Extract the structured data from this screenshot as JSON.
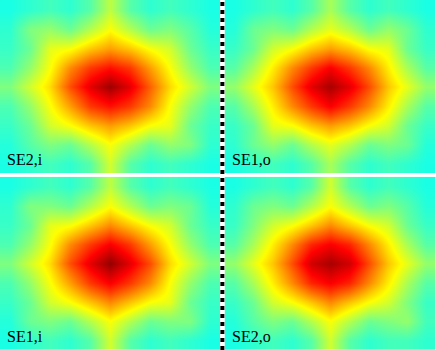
{
  "chart_data": [
    {
      "type": "heatmap",
      "title": "SE2,i",
      "tick_labels": false,
      "zlim": [
        0,
        1
      ],
      "z": [
        [
          0.4,
          0.42,
          0.44,
          0.42,
          0.46,
          0.56,
          0.46,
          0.42,
          0.44,
          0.42,
          0.4
        ],
        [
          0.42,
          0.5,
          0.52,
          0.48,
          0.55,
          0.62,
          0.55,
          0.48,
          0.5,
          0.46,
          0.41
        ],
        [
          0.43,
          0.48,
          0.6,
          0.62,
          0.68,
          0.72,
          0.68,
          0.62,
          0.58,
          0.48,
          0.43
        ],
        [
          0.45,
          0.52,
          0.62,
          0.74,
          0.82,
          0.86,
          0.82,
          0.72,
          0.62,
          0.52,
          0.45
        ],
        [
          0.5,
          0.58,
          0.66,
          0.8,
          0.9,
          0.97,
          0.9,
          0.78,
          0.66,
          0.58,
          0.5
        ],
        [
          0.45,
          0.52,
          0.62,
          0.72,
          0.82,
          0.86,
          0.82,
          0.74,
          0.62,
          0.52,
          0.45
        ],
        [
          0.43,
          0.48,
          0.58,
          0.62,
          0.68,
          0.72,
          0.68,
          0.62,
          0.6,
          0.48,
          0.43
        ],
        [
          0.41,
          0.46,
          0.5,
          0.48,
          0.55,
          0.62,
          0.55,
          0.48,
          0.52,
          0.5,
          0.42
        ],
        [
          0.4,
          0.42,
          0.44,
          0.42,
          0.46,
          0.58,
          0.46,
          0.42,
          0.44,
          0.42,
          0.4
        ]
      ]
    },
    {
      "type": "heatmap",
      "title": "SE1,o",
      "tick_labels": false,
      "zlim": [
        0,
        1
      ],
      "z": [
        [
          0.4,
          0.42,
          0.44,
          0.42,
          0.46,
          0.54,
          0.46,
          0.42,
          0.44,
          0.42,
          0.4
        ],
        [
          0.41,
          0.48,
          0.5,
          0.48,
          0.55,
          0.6,
          0.55,
          0.48,
          0.52,
          0.48,
          0.42
        ],
        [
          0.43,
          0.48,
          0.58,
          0.62,
          0.68,
          0.72,
          0.68,
          0.62,
          0.6,
          0.48,
          0.43
        ],
        [
          0.46,
          0.54,
          0.64,
          0.74,
          0.82,
          0.88,
          0.82,
          0.74,
          0.64,
          0.54,
          0.46
        ],
        [
          0.52,
          0.6,
          0.68,
          0.8,
          0.9,
          0.96,
          0.9,
          0.8,
          0.68,
          0.6,
          0.52
        ],
        [
          0.46,
          0.54,
          0.64,
          0.74,
          0.82,
          0.88,
          0.82,
          0.74,
          0.64,
          0.54,
          0.46
        ],
        [
          0.43,
          0.48,
          0.6,
          0.62,
          0.68,
          0.72,
          0.68,
          0.62,
          0.58,
          0.48,
          0.43
        ],
        [
          0.42,
          0.48,
          0.52,
          0.48,
          0.55,
          0.6,
          0.55,
          0.48,
          0.5,
          0.48,
          0.41
        ],
        [
          0.4,
          0.42,
          0.44,
          0.42,
          0.46,
          0.54,
          0.46,
          0.42,
          0.44,
          0.42,
          0.4
        ]
      ]
    },
    {
      "type": "heatmap",
      "title": "SE1,i",
      "tick_labels": false,
      "zlim": [
        0,
        1
      ],
      "z": [
        [
          0.4,
          0.42,
          0.44,
          0.42,
          0.46,
          0.56,
          0.46,
          0.42,
          0.44,
          0.42,
          0.4
        ],
        [
          0.42,
          0.5,
          0.5,
          0.48,
          0.55,
          0.62,
          0.55,
          0.48,
          0.5,
          0.48,
          0.41
        ],
        [
          0.43,
          0.48,
          0.6,
          0.62,
          0.68,
          0.74,
          0.68,
          0.62,
          0.58,
          0.48,
          0.43
        ],
        [
          0.45,
          0.52,
          0.62,
          0.74,
          0.82,
          0.88,
          0.82,
          0.72,
          0.62,
          0.52,
          0.45
        ],
        [
          0.5,
          0.58,
          0.66,
          0.8,
          0.9,
          0.98,
          0.9,
          0.8,
          0.66,
          0.58,
          0.5
        ],
        [
          0.45,
          0.52,
          0.62,
          0.72,
          0.82,
          0.88,
          0.82,
          0.74,
          0.62,
          0.52,
          0.45
        ],
        [
          0.43,
          0.48,
          0.58,
          0.62,
          0.68,
          0.74,
          0.68,
          0.62,
          0.6,
          0.48,
          0.43
        ],
        [
          0.41,
          0.48,
          0.5,
          0.48,
          0.55,
          0.62,
          0.55,
          0.48,
          0.5,
          0.5,
          0.42
        ],
        [
          0.4,
          0.42,
          0.44,
          0.42,
          0.46,
          0.58,
          0.46,
          0.42,
          0.44,
          0.42,
          0.4
        ]
      ]
    },
    {
      "type": "heatmap",
      "title": "SE2,o",
      "tick_labels": false,
      "zlim": [
        0,
        1
      ],
      "z": [
        [
          0.4,
          0.42,
          0.44,
          0.42,
          0.46,
          0.58,
          0.46,
          0.42,
          0.44,
          0.42,
          0.4
        ],
        [
          0.42,
          0.48,
          0.5,
          0.48,
          0.55,
          0.62,
          0.55,
          0.48,
          0.5,
          0.46,
          0.41
        ],
        [
          0.43,
          0.5,
          0.58,
          0.62,
          0.68,
          0.74,
          0.68,
          0.62,
          0.58,
          0.48,
          0.43
        ],
        [
          0.46,
          0.54,
          0.64,
          0.74,
          0.84,
          0.88,
          0.84,
          0.74,
          0.64,
          0.54,
          0.46
        ],
        [
          0.52,
          0.6,
          0.68,
          0.8,
          0.92,
          0.96,
          0.92,
          0.8,
          0.68,
          0.6,
          0.52
        ],
        [
          0.46,
          0.54,
          0.64,
          0.74,
          0.84,
          0.88,
          0.84,
          0.74,
          0.64,
          0.54,
          0.46
        ],
        [
          0.43,
          0.48,
          0.58,
          0.62,
          0.68,
          0.74,
          0.68,
          0.62,
          0.58,
          0.5,
          0.43
        ],
        [
          0.41,
          0.46,
          0.5,
          0.48,
          0.55,
          0.62,
          0.55,
          0.48,
          0.5,
          0.52,
          0.44
        ],
        [
          0.4,
          0.42,
          0.44,
          0.42,
          0.46,
          0.58,
          0.46,
          0.42,
          0.44,
          0.44,
          0.42
        ]
      ]
    }
  ]
}
